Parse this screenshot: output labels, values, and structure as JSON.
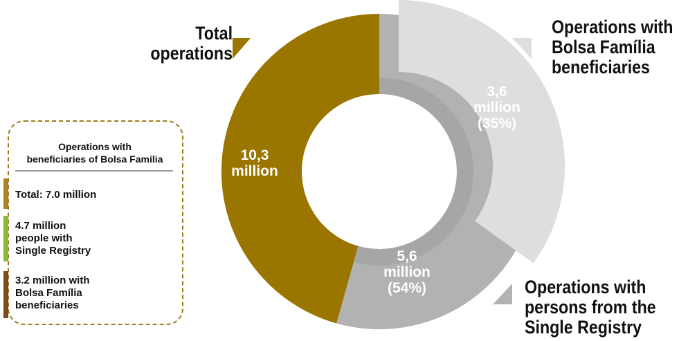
{
  "chart_data": {
    "type": "pie",
    "slices": [
      {
        "label_line1": "10,3",
        "label_line2": "million",
        "value": 10.3,
        "color": "#9a7600"
      },
      {
        "label_line1": "3,6",
        "label_line2": "million",
        "label_line3": "(35%)",
        "value": 3.6,
        "color": "#dedede"
      },
      {
        "label_line1": "5,6",
        "label_line2": "million",
        "label_line3": "(54%)",
        "value": 5.6,
        "color": "#b2b2b2"
      }
    ],
    "inner_ring_color": "#a6a6a6",
    "callouts": {
      "total": [
        "Total",
        "operations"
      ],
      "bolsa": [
        "Operations with",
        "Bolsa Família",
        "beneficiaries"
      ],
      "single": [
        "Operations with",
        "persons from the",
        "Single Registry"
      ]
    },
    "callout_marker_colors": {
      "total": "#9a7600",
      "bolsa": "#dedede",
      "single": "#b2b2b2"
    },
    "legend": {
      "title": [
        "Operations with",
        "beneficiaries of Bolsa Família"
      ],
      "items": [
        {
          "text": [
            "Total: 7.0 million"
          ],
          "color": "#a7832a"
        },
        {
          "text": [
            "4.7 million",
            "people with",
            "Single Registry"
          ],
          "color": "#8cb83c"
        },
        {
          "text": [
            "3.2 million with",
            "Bolsa Família",
            "beneficiaries"
          ],
          "color": "#7a4a1c"
        }
      ],
      "border_color": "#a07a1a"
    }
  }
}
